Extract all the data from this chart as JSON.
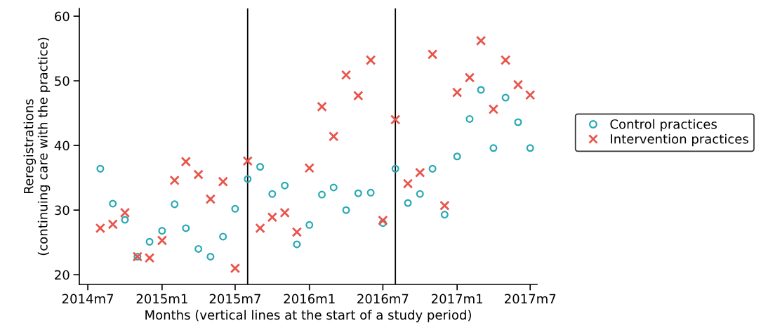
{
  "chart_data": {
    "type": "scatter",
    "xlabel": "Months (vertical lines at the start of a study period)",
    "ylabel": "Reregistrations\n(continuing care with the practice)",
    "x": [
      "2014-08",
      "2014-09",
      "2014-10",
      "2014-11",
      "2014-12",
      "2015-01",
      "2015-02",
      "2015-03",
      "2015-04",
      "2015-05",
      "2015-06",
      "2015-07",
      "2015-08",
      "2015-09",
      "2015-10",
      "2015-11",
      "2015-12",
      "2016-01",
      "2016-02",
      "2016-03",
      "2016-04",
      "2016-05",
      "2016-06",
      "2016-07",
      "2016-08",
      "2016-09",
      "2016-10",
      "2016-11",
      "2016-12",
      "2017-01",
      "2017-02",
      "2017-03",
      "2017-04",
      "2017-05",
      "2017-06",
      "2017-07"
    ],
    "series": [
      {
        "name": "Control practices",
        "color": "#2aa9b5",
        "marker": "circle",
        "values": [
          36.4,
          31.0,
          28.5,
          22.8,
          25.1,
          26.8,
          30.9,
          27.2,
          24.0,
          22.8,
          25.9,
          30.2,
          34.8,
          36.7,
          32.5,
          33.8,
          24.7,
          27.7,
          32.4,
          33.5,
          30.0,
          32.6,
          32.7,
          28.0,
          36.4,
          31.1,
          32.5,
          36.4,
          29.3,
          38.3,
          44.1,
          48.6,
          39.6,
          47.4,
          43.6,
          39.6
        ]
      },
      {
        "name": "Intervention practices",
        "color": "#e8544a",
        "marker": "cross",
        "values": [
          27.2,
          27.8,
          29.6,
          22.8,
          22.6,
          25.3,
          34.6,
          37.5,
          35.5,
          31.7,
          34.4,
          21.0,
          37.6,
          27.2,
          28.9,
          29.6,
          26.6,
          36.5,
          46.0,
          41.4,
          50.9,
          47.7,
          53.2,
          28.4,
          44.0,
          34.1,
          35.8,
          54.1,
          30.7,
          48.2,
          50.5,
          56.2,
          45.6,
          53.2,
          49.4,
          47.8
        ]
      }
    ],
    "xlim": [
      "2014-06-10",
      "2017-07-18"
    ],
    "xticks": [
      {
        "value": "2014-07",
        "label": "2014m7"
      },
      {
        "value": "2015-01",
        "label": "2015m1"
      },
      {
        "value": "2015-07",
        "label": "2015m7"
      },
      {
        "value": "2016-01",
        "label": "2016m1"
      },
      {
        "value": "2016-07",
        "label": "2016m7"
      },
      {
        "value": "2017-01",
        "label": "2017m1"
      },
      {
        "value": "2017-07",
        "label": "2017m7"
      }
    ],
    "ylim": [
      18.5,
      61.2
    ],
    "yticks": [
      20,
      30,
      40,
      50,
      60
    ],
    "ref_lines": [
      {
        "axis": "x",
        "value": "2015-08",
        "color": "#000000"
      },
      {
        "axis": "x",
        "value": "2016-08",
        "color": "#000000"
      }
    ],
    "grid": false,
    "legend": "right"
  }
}
